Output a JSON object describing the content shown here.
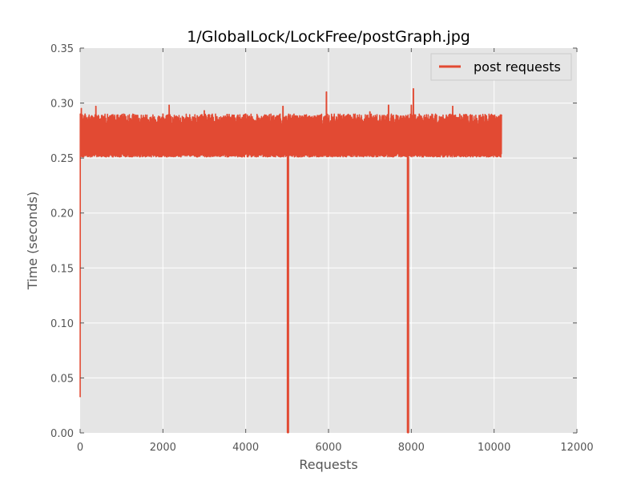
{
  "colors": {
    "plot_background": "#e5e5e5",
    "grid": "#ffffff",
    "series": "#e24a33",
    "tick_text": "#555555",
    "legend_border": "#cccccc"
  },
  "chart_data": {
    "type": "line",
    "title": "1/GlobalLock/LockFree/postGraph.jpg",
    "xlabel": "Requests",
    "ylabel": "Time (seconds)",
    "xlim": [
      0,
      12000
    ],
    "ylim": [
      0.0,
      0.35
    ],
    "xticks": [
      0,
      2000,
      4000,
      6000,
      8000,
      10000,
      12000
    ],
    "xtick_labels": [
      "0",
      "2000",
      "4000",
      "6000",
      "8000",
      "10000",
      "12000"
    ],
    "yticks": [
      0.0,
      0.05,
      0.1,
      0.15,
      0.2,
      0.25,
      0.3,
      0.35
    ],
    "ytick_labels": [
      "0.00",
      "0.05",
      "0.10",
      "0.15",
      "0.20",
      "0.25",
      "0.30",
      "0.35"
    ],
    "grid": true,
    "legend": {
      "position": "top-right"
    },
    "series": [
      {
        "name": "post requests",
        "points_count": 10180,
        "baseline_range": [
          0.251,
          0.29
        ],
        "band_values": [
          [
            0,
            0.033
          ],
          [
            5,
            0.29
          ],
          [
            30,
            0.295
          ],
          [
            60,
            0.255
          ],
          [
            120,
            0.29
          ],
          [
            380,
            0.297
          ],
          [
            1000,
            0.289
          ],
          [
            2000,
            0.29
          ],
          [
            2150,
            0.298
          ],
          [
            3000,
            0.293
          ],
          [
            4000,
            0.29
          ],
          [
            4900,
            0.297
          ],
          [
            5950,
            0.31
          ],
          [
            7000,
            0.292
          ],
          [
            7450,
            0.298
          ],
          [
            8000,
            0.298
          ],
          [
            8050,
            0.313
          ],
          [
            9000,
            0.297
          ],
          [
            10180,
            0.289
          ]
        ],
        "dips": [
          {
            "x": 5020,
            "y": 0.0
          },
          {
            "x": 7920,
            "y": 0.0
          }
        ]
      }
    ]
  }
}
